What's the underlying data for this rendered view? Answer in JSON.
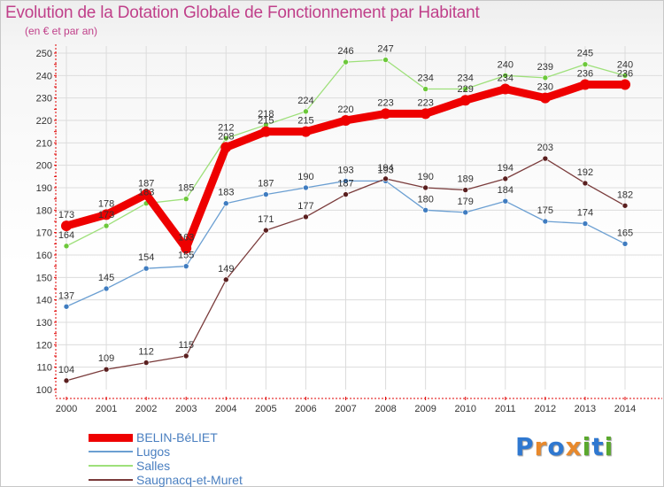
{
  "title": "Evolution de la Dotation Globale de Fonctionnement par Habitant",
  "subtitle": "(en € et par an)",
  "logo": {
    "text": "Proxiti",
    "letters": [
      "P",
      "r",
      "o",
      "x",
      "i",
      "t",
      "i"
    ],
    "letter_colors": [
      "#2f78d0",
      "#e8892c",
      "#2f78d0",
      "#e8892c",
      "#5aa82d",
      "#2f78d0",
      "#5aa82d"
    ]
  },
  "colors": {
    "title": "#c0408a",
    "axis": "#e00000",
    "grid": "#dcdcdc",
    "tick_label": "#333333",
    "value_label": "#333333",
    "legend_text": "#4a7fc0"
  },
  "chart_data": {
    "type": "line",
    "title": "Evolution de la Dotation Globale de Fonctionnement par Habitant",
    "subtitle": "(en € et par an)",
    "xlabel": "",
    "ylabel": "",
    "ylim": [
      100,
      250
    ],
    "y_ticks": [
      100,
      110,
      120,
      130,
      140,
      150,
      160,
      170,
      180,
      190,
      200,
      210,
      220,
      230,
      240,
      250
    ],
    "grid": true,
    "legend_position": "bottom-left",
    "x": [
      "2000",
      "2001",
      "2002",
      "2003",
      "2004",
      "2005",
      "2006",
      "2007",
      "2008",
      "2009",
      "2010",
      "2011",
      "2012",
      "2013",
      "2014"
    ],
    "series": [
      {
        "name": "BELIN-BéLIET",
        "color": "#ee0000",
        "marker": "#ee0000",
        "width": 9,
        "values": [
          173,
          178,
          187,
          163,
          208,
          215,
          215,
          220,
          223,
          223,
          229,
          234,
          230,
          236,
          236
        ],
        "labels": [
          "173",
          "178",
          "187",
          "163",
          "208",
          "215",
          "215",
          "220",
          "223",
          "223",
          "229",
          "234",
          "230",
          "236",
          "236"
        ]
      },
      {
        "name": "Lugos",
        "color": "#6b9fd2",
        "marker": "#3f7cc0",
        "width": 1.3,
        "values": [
          137,
          145,
          154,
          155,
          183,
          187,
          190,
          193,
          193,
          180,
          179,
          184,
          175,
          174,
          165
        ],
        "labels": [
          "137",
          "145",
          "154",
          "155",
          "183",
          "187",
          "190",
          "193",
          "193",
          "180",
          "179",
          "184",
          "175",
          "174",
          "165"
        ]
      },
      {
        "name": "Salles",
        "color": "#9ee07a",
        "marker": "#6cc83a",
        "width": 1.3,
        "values": [
          164,
          173,
          183,
          185,
          212,
          218,
          224,
          246,
          247,
          234,
          234,
          240,
          239,
          245,
          240
        ],
        "labels": [
          "164",
          "173",
          "183",
          "185",
          "212",
          "218",
          "224",
          "246",
          "247",
          "234",
          "234",
          "240",
          "239",
          "245",
          "240"
        ]
      },
      {
        "name": "Saugnacq-et-Muret",
        "color": "#7a3b3b",
        "marker": "#5a1f1f",
        "width": 1.3,
        "values": [
          104,
          109,
          112,
          115,
          149,
          171,
          177,
          187,
          194,
          190,
          189,
          194,
          203,
          192,
          182
        ],
        "labels": [
          "104",
          "109",
          "112",
          "115",
          "149",
          "171",
          "177",
          "187",
          "194",
          "190",
          "189",
          "194",
          "203",
          "192",
          "182"
        ]
      }
    ]
  }
}
